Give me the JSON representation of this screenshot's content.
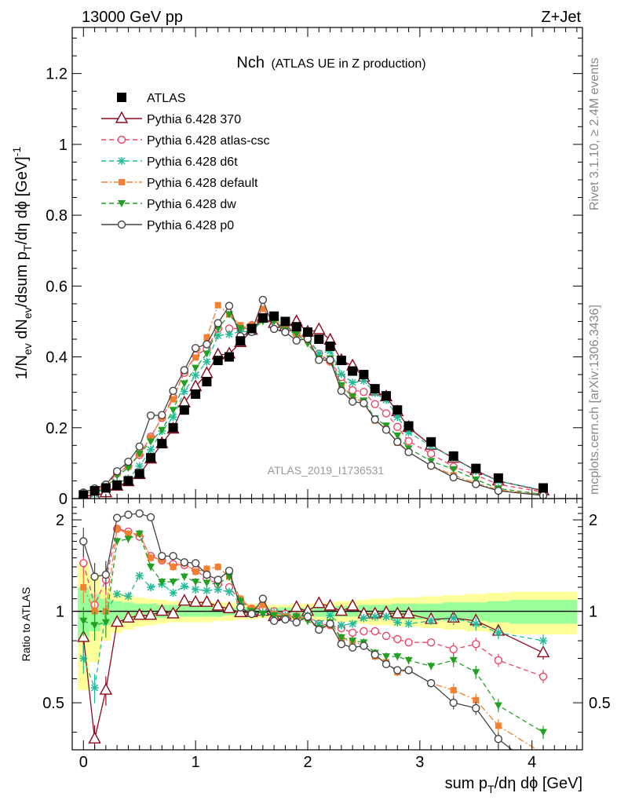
{
  "header": {
    "left": "13000 GeV pp",
    "right": "Z+Jet"
  },
  "plot_title": {
    "main": "Nch",
    "sub": "(ATLAS UE in Z production)"
  },
  "side_labels": {
    "rivet": "Rivet 3.1.10, ≥ 2.4M events",
    "mcplots": "mcplots.cern.ch [arXiv:1306.3436]"
  },
  "watermark": "ATLAS_2019_I1736531",
  "axis": {
    "ylabel_top_prefix": "1/N",
    "ylabel_top_full": "1/N_ev dN_ev/dsum p_T/dη dϕ [GeV]^-1",
    "ylabel_bottom": "Ratio to ATLAS",
    "xlabel": "sum p_T/dη dϕ [GeV]"
  },
  "colors": {
    "atlas": "#000000",
    "p370": "#8b0a1e",
    "atlascsc": "#ee4466",
    "d6t": "#22bb99",
    "default": "#f28030",
    "dw": "#22a022",
    "p0": "#444444",
    "band_yellow": "#ffff99",
    "band_green": "#99ff99"
  },
  "chart_data": {
    "type": "line",
    "title": "Nch (ATLAS UE in Z production)",
    "xlabel": "sum pT/dη dϕ [GeV]",
    "ylabel": "1/Nev dNev/dsum pT/dη dϕ [GeV]^-1",
    "xlim": [
      -0.1,
      4.45
    ],
    "ylim_main": [
      0,
      1.33
    ],
    "ylim_ratio": [
      0.35,
      2.35
    ],
    "x": [
      0.0,
      0.1,
      0.2,
      0.3,
      0.4,
      0.5,
      0.6,
      0.7,
      0.8,
      0.9,
      1.0,
      1.1,
      1.2,
      1.3,
      1.4,
      1.5,
      1.6,
      1.7,
      1.8,
      1.9,
      2.0,
      2.1,
      2.2,
      2.3,
      2.4,
      2.5,
      2.6,
      2.7,
      2.8,
      2.9,
      3.1,
      3.3,
      3.5,
      3.7,
      4.1
    ],
    "main_ticks": [
      0,
      0.2,
      0.4,
      0.6,
      0.8,
      1,
      1.2
    ],
    "ratio_ticks": [
      0.5,
      1,
      2
    ],
    "x_ticks": [
      0,
      1,
      2,
      3,
      4
    ],
    "series": [
      {
        "key": "atlas",
        "name": "ATLAS",
        "marker": "square",
        "line": "none",
        "values": [
          0.01,
          0.022,
          0.03,
          0.038,
          0.05,
          0.07,
          0.115,
          0.155,
          0.2,
          0.25,
          0.295,
          0.33,
          0.39,
          0.4,
          0.445,
          0.48,
          0.51,
          0.515,
          0.5,
          0.485,
          0.47,
          0.45,
          0.43,
          0.39,
          0.36,
          0.35,
          0.31,
          0.29,
          0.25,
          0.205,
          0.16,
          0.12,
          0.085,
          0.058,
          0.03
        ]
      },
      {
        "key": "p370",
        "name": "Pythia 6.428 370",
        "marker": "triangle-up-open",
        "line": "solid",
        "ratio": [
          0.82,
          0.38,
          0.55,
          0.92,
          0.95,
          0.97,
          0.97,
          1.0,
          0.98,
          1.08,
          1.07,
          1.07,
          1.04,
          1.02,
          0.99,
          0.99,
          1.0,
          0.96,
          0.97,
          1.03,
          1.0,
          1.06,
          1.04,
          1.0,
          1.04,
          0.98,
          0.98,
          0.99,
          0.98,
          0.98,
          0.94,
          0.95,
          0.93,
          0.86,
          0.73
        ]
      },
      {
        "key": "atlascsc",
        "name": "Pythia 6.428 atlas-csc",
        "marker": "circle-open",
        "line": "dashed",
        "ratio": [
          1.44,
          1.05,
          1.27,
          1.87,
          1.83,
          1.76,
          1.52,
          1.47,
          1.43,
          1.42,
          1.37,
          1.28,
          1.23,
          1.2,
          1.08,
          1.02,
          1.02,
          1.0,
          0.98,
          0.96,
          0.96,
          0.91,
          0.9,
          0.88,
          0.85,
          0.86,
          0.86,
          0.83,
          0.81,
          0.79,
          0.79,
          0.75,
          0.78,
          0.69,
          0.61
        ]
      },
      {
        "key": "d6t",
        "name": "Pythia 6.428 d6t",
        "marker": "star",
        "line": "dashed",
        "ratio": [
          0.7,
          0.56,
          1.0,
          1.14,
          1.12,
          1.31,
          1.2,
          1.23,
          1.15,
          1.21,
          1.18,
          1.17,
          1.18,
          1.16,
          1.06,
          0.98,
          0.99,
          0.99,
          0.97,
          0.96,
          0.97,
          0.91,
          0.97,
          0.9,
          0.91,
          0.95,
          0.96,
          0.96,
          0.92,
          0.91,
          0.93,
          0.95,
          0.91,
          0.85,
          0.8
        ]
      },
      {
        "key": "default",
        "name": "Pythia 6.428 default",
        "marker": "square-small",
        "line": "dashdot",
        "ratio": [
          1.2,
          1.0,
          1.0,
          1.87,
          1.8,
          1.8,
          1.5,
          1.48,
          1.4,
          1.44,
          1.35,
          1.38,
          1.4,
          1.3,
          1.1,
          1.02,
          1.05,
          0.98,
          0.96,
          0.96,
          0.95,
          0.87,
          0.9,
          0.81,
          0.8,
          0.77,
          0.71,
          0.68,
          0.63,
          0.64,
          0.58,
          0.55,
          0.51,
          0.42,
          0.34
        ]
      },
      {
        "key": "dw",
        "name": "Pythia 6.428 dw",
        "marker": "triangle-down",
        "line": "dashed",
        "ratio": [
          0.93,
          0.9,
          0.92,
          1.7,
          1.73,
          1.8,
          1.4,
          1.25,
          1.25,
          1.3,
          1.25,
          1.24,
          1.23,
          1.3,
          1.08,
          1.0,
          0.98,
          0.97,
          0.95,
          0.96,
          0.93,
          0.88,
          0.92,
          0.82,
          0.8,
          0.79,
          0.73,
          0.71,
          0.71,
          0.69,
          0.66,
          0.69,
          0.63,
          0.49,
          0.4
        ]
      },
      {
        "key": "p0",
        "name": "Pythia 6.428 p0",
        "marker": "circle-open",
        "line": "solid",
        "ratio": [
          1.7,
          1.3,
          1.32,
          2.03,
          2.08,
          2.1,
          2.04,
          1.52,
          1.52,
          1.45,
          1.44,
          1.32,
          1.27,
          1.36,
          1.03,
          0.98,
          1.1,
          0.93,
          0.94,
          0.92,
          0.96,
          0.87,
          0.91,
          0.78,
          0.76,
          0.77,
          0.72,
          0.67,
          0.64,
          0.64,
          0.58,
          0.5,
          0.48,
          0.38,
          0.29
        ]
      }
    ],
    "uncertainty_band": {
      "edges": [
        -0.05,
        0.05,
        0.15,
        0.25,
        0.35,
        0.45,
        0.55,
        0.65,
        0.75,
        0.85,
        0.95,
        1.05,
        1.15,
        1.25,
        1.35,
        1.45,
        1.55,
        1.65,
        1.75,
        1.85,
        1.95,
        2.05,
        2.15,
        2.25,
        2.35,
        2.45,
        2.55,
        2.65,
        2.75,
        2.85,
        3.0,
        3.2,
        3.4,
        3.6,
        3.8,
        4.4
      ],
      "yellow": [
        0.55,
        0.68,
        0.8,
        0.85,
        0.87,
        0.89,
        0.9,
        0.91,
        0.92,
        0.92,
        0.92,
        0.92,
        0.93,
        0.93,
        0.94,
        0.94,
        0.95,
        0.95,
        0.95,
        0.94,
        0.94,
        0.93,
        0.93,
        0.92,
        0.92,
        0.91,
        0.9,
        0.9,
        0.89,
        0.89,
        0.88,
        0.87,
        0.86,
        0.85,
        0.84
      ],
      "green": [
        0.8,
        0.86,
        0.9,
        0.92,
        0.93,
        0.94,
        0.94,
        0.95,
        0.95,
        0.96,
        0.96,
        0.96,
        0.96,
        0.97,
        0.97,
        0.97,
        0.97,
        0.97,
        0.97,
        0.97,
        0.97,
        0.96,
        0.96,
        0.96,
        0.96,
        0.95,
        0.95,
        0.95,
        0.94,
        0.94,
        0.94,
        0.93,
        0.93,
        0.92,
        0.91
      ]
    }
  }
}
